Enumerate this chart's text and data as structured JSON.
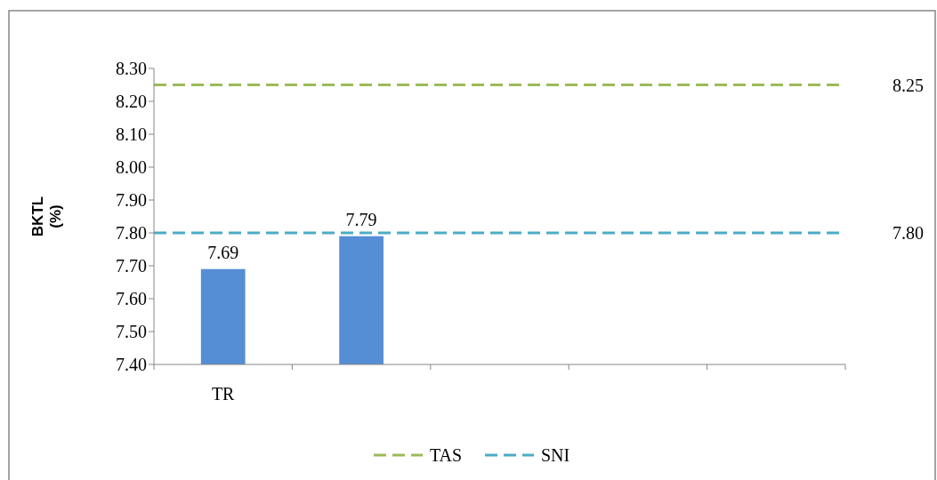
{
  "chart_data": {
    "type": "bar",
    "ylabel": "BKTL (%)",
    "categories": [
      "TR",
      null,
      null,
      null,
      null
    ],
    "series": [
      {
        "color": "#558ed5",
        "values": [
          7.69,
          7.79,
          null,
          null,
          null
        ],
        "value_labels": [
          "7.69",
          "7.79",
          null,
          null,
          null
        ]
      },
      {
        "type": "line",
        "name": "TAS",
        "color": "#9bbb59",
        "line_style": "dashed",
        "values": [
          8.25,
          8.25,
          8.25,
          8.25,
          8.25
        ]
      },
      {
        "type": "line",
        "name": "SNI",
        "color": "#4bacc6",
        "line_style": "dashed",
        "values": [
          7.8,
          7.8,
          7.8,
          7.8,
          7.8
        ]
      }
    ],
    "annotations": [
      "8.25",
      "7.80"
    ],
    "ylim": [
      7.4,
      8.3
    ],
    "yticks": [
      {
        "value": 7.4,
        "label": "7.40"
      },
      {
        "value": 7.5,
        "label": "7.50"
      },
      {
        "value": 7.6,
        "label": "7.60"
      },
      {
        "value": 7.7,
        "label": "7.70"
      },
      {
        "value": 7.8,
        "label": "7.80"
      },
      {
        "value": 7.9,
        "label": "7.90"
      },
      {
        "value": 8.0,
        "label": "8.00"
      },
      {
        "value": 8.1,
        "label": "8.10"
      },
      {
        "value": 8.2,
        "label": "8.20"
      },
      {
        "value": 8.3,
        "label": "8.30"
      }
    ],
    "grid": false,
    "legend": "bottom"
  }
}
